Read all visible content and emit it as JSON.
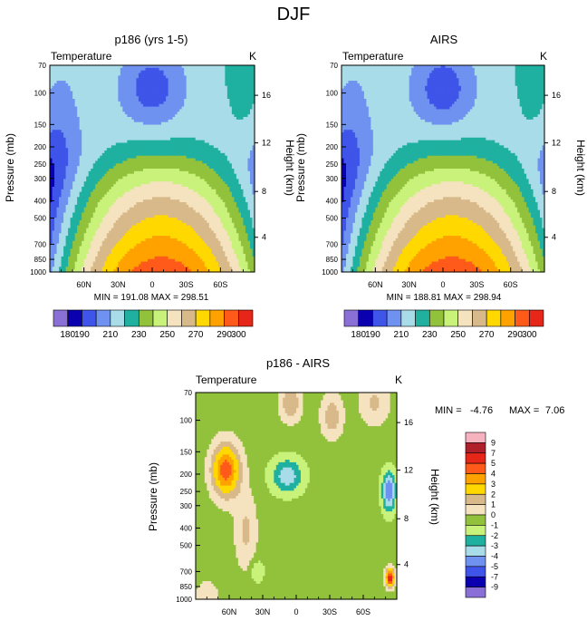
{
  "figure": {
    "title": "DJF"
  },
  "palette": {
    "full": [
      "#8a6fd6",
      "#0a00b0",
      "#3f54e8",
      "#6f92f0",
      "#a8dce8",
      "#1fb0a0",
      "#92c23c",
      "#c8f27a",
      "#f5e2be",
      "#d8b98a",
      "#ffd800",
      "#ffa200",
      "#ff5a1a",
      "#e52618",
      "#b0202a",
      "#f7b2c0",
      "#ff1fa0"
    ],
    "diff": [
      "#8a6fd6",
      "#0a00b0",
      "#3f54e8",
      "#6f92f0",
      "#a8dce8",
      "#1fb0a0",
      "#92c23c",
      "#c8f27a",
      "#f5e2be",
      "#d8b98a",
      "#ffd800",
      "#ffa200",
      "#ff5a1a",
      "#e52618",
      "#b0202a",
      "#f7b2c0",
      "#ff1fa0"
    ]
  },
  "chart_data": [
    {
      "id": "p186",
      "type": "heatmap",
      "title": "p186 (yrs 1-5)",
      "field_label": "Temperature",
      "units": "K",
      "ylabel": "Pressure (mb)",
      "ylabel_right": "Height (km)",
      "x_ticks": [
        "60N",
        "30N",
        "0",
        "30S",
        "60S"
      ],
      "x_tick_lats": [
        60,
        30,
        0,
        -30,
        -60
      ],
      "x_range": [
        90,
        -90
      ],
      "p_ticks": [
        70,
        100,
        150,
        200,
        250,
        300,
        400,
        500,
        700,
        850,
        1000
      ],
      "p_range": [
        70,
        1000
      ],
      "height_ticks": [
        16,
        12,
        8,
        4
      ],
      "height_ticks_pressure": [
        103,
        190,
        355,
        640
      ],
      "min": 191.08,
      "max": 298.51,
      "minmax_text": "MIN = 191.08  MAX = 298.51",
      "levels": [
        180,
        190,
        200,
        210,
        220,
        230,
        240,
        250,
        260,
        270,
        280,
        290,
        300
      ],
      "colorbar_labels": [
        "180",
        "190",
        "210",
        "230",
        "250",
        "270",
        "290",
        "300"
      ]
    },
    {
      "id": "airs",
      "type": "heatmap",
      "title": "AIRS",
      "field_label": "Temperature",
      "units": "K",
      "ylabel": "Pressure (mb)",
      "ylabel_right": "Height (km)",
      "x_ticks": [
        "60N",
        "30N",
        "0",
        "30S",
        "60S"
      ],
      "x_tick_lats": [
        60,
        30,
        0,
        -30,
        -60
      ],
      "x_range": [
        90,
        -90
      ],
      "p_ticks": [
        70,
        100,
        150,
        200,
        250,
        300,
        400,
        500,
        700,
        850,
        1000
      ],
      "p_range": [
        70,
        1000
      ],
      "height_ticks": [
        16,
        12,
        8,
        4
      ],
      "height_ticks_pressure": [
        103,
        190,
        355,
        640
      ],
      "min": 188.81,
      "max": 298.94,
      "minmax_text": "MIN = 188.81  MAX = 298.94",
      "levels": [
        180,
        190,
        200,
        210,
        220,
        230,
        240,
        250,
        260,
        270,
        280,
        290,
        300
      ],
      "colorbar_labels": [
        "180",
        "190",
        "210",
        "230",
        "250",
        "270",
        "290",
        "300"
      ]
    },
    {
      "id": "diff",
      "type": "heatmap",
      "title": "p186 - AIRS",
      "field_label": "Temperature",
      "units": "K",
      "ylabel": "Pressure (mb)",
      "ylabel_right": "Height (km)",
      "x_ticks": [
        "60N",
        "30N",
        "0",
        "30S",
        "60S"
      ],
      "x_tick_lats": [
        60,
        30,
        0,
        -30,
        -60
      ],
      "x_range": [
        90,
        -90
      ],
      "p_ticks": [
        70,
        100,
        150,
        200,
        250,
        300,
        400,
        500,
        700,
        850,
        1000
      ],
      "p_range": [
        70,
        1000
      ],
      "height_ticks": [
        16,
        12,
        8,
        4
      ],
      "height_ticks_pressure": [
        103,
        190,
        355,
        640
      ],
      "min": -4.76,
      "max": 7.06,
      "minmax_label_min": "MIN =",
      "minmax_min_val": "-4.76",
      "minmax_label_max": "MAX =",
      "minmax_max_val": "7.06",
      "levels": [
        -9,
        -7,
        -5,
        -4,
        -3,
        -2,
        -1,
        0,
        1,
        2,
        3,
        4,
        5,
        7,
        9
      ],
      "colorbar_labels": [
        "9",
        "7",
        "5",
        "4",
        "3",
        "2",
        "1",
        "0",
        "-1",
        "-2",
        "-3",
        "-4",
        "-5",
        "-7",
        "-9"
      ]
    }
  ]
}
